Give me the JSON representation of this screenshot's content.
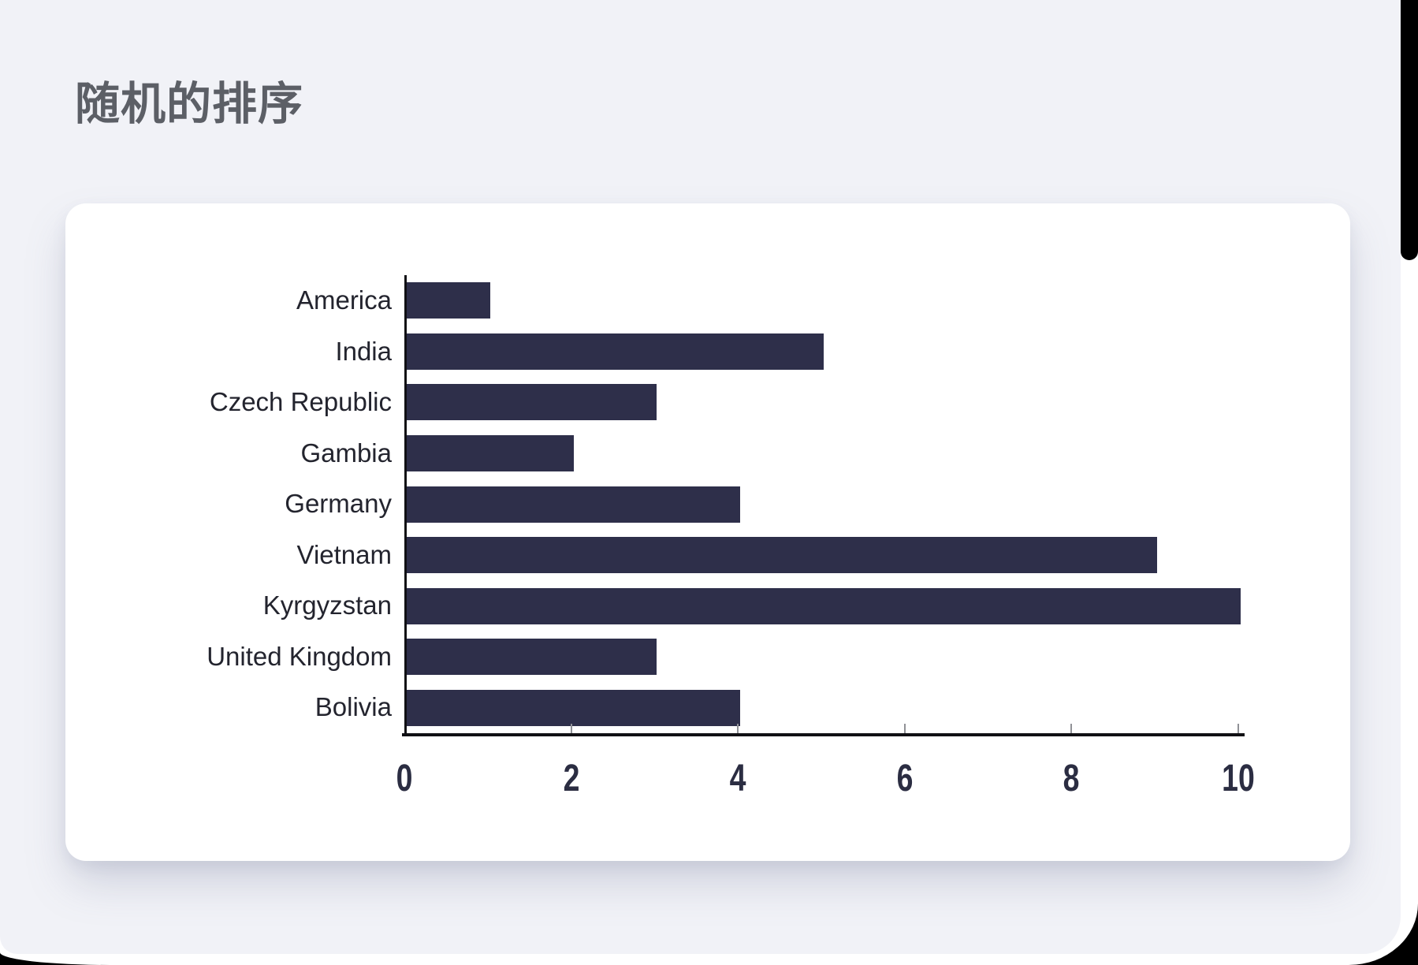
{
  "page": {
    "title": "随机的排序",
    "colors": {
      "outer_background": "#000000",
      "panel_background": "#F1F2F7",
      "card_background": "#FFFFFF",
      "title_text": "#5C5F66"
    }
  },
  "scrollbar": {
    "thumb_color": "#000000"
  },
  "chart_data": {
    "type": "bar",
    "orientation": "horizontal",
    "title": "",
    "categories": [
      "America",
      "India",
      "Czech Republic",
      "Gambia",
      "Germany",
      "Vietnam",
      "Kyrgyzstan",
      "United Kingdom",
      "Bolivia"
    ],
    "values": [
      1,
      5,
      3,
      2,
      4,
      9,
      10,
      3,
      4
    ],
    "xlim": [
      0,
      10
    ],
    "x_ticks": [
      0,
      2,
      4,
      6,
      8,
      10
    ],
    "xlabel": "",
    "ylabel": "",
    "grid": false,
    "legend": "none",
    "bar_color": "#2E2F4A",
    "axis_color": "#101014",
    "tick_mark_color": "#909196",
    "tick_label_color": "#2B2D42",
    "category_label_color": "#23242E"
  }
}
